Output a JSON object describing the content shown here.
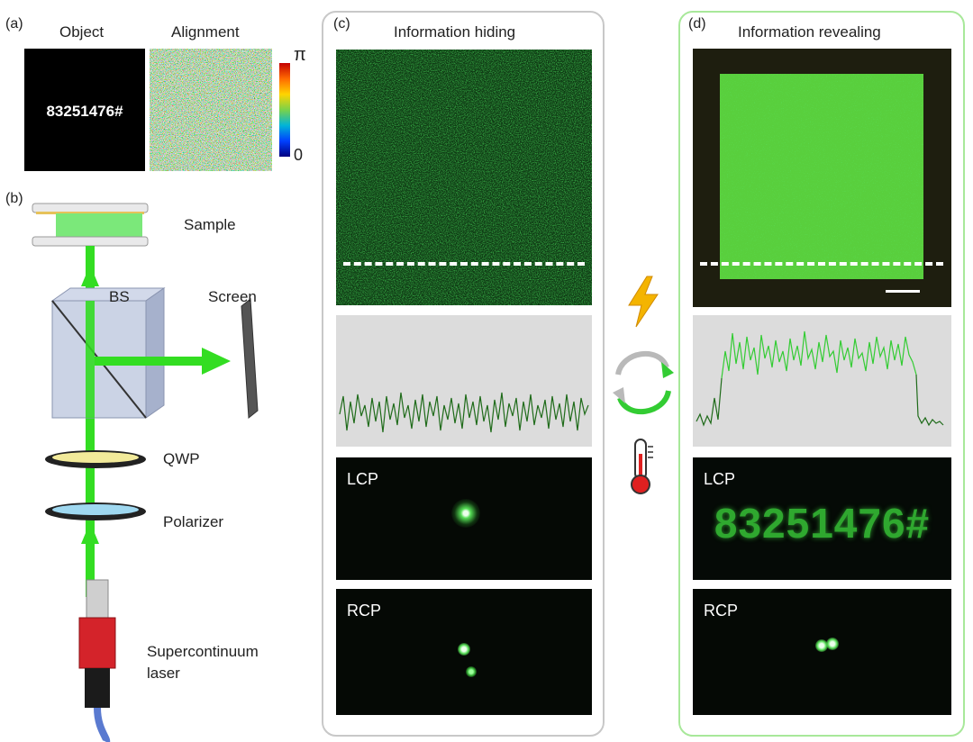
{
  "panel_a": {
    "tag": "(a)",
    "object_title": "Object",
    "alignment_title": "Alignment",
    "object_code": "83251476#",
    "scale_max": "π",
    "scale_min": "0"
  },
  "panel_b": {
    "tag": "(b)",
    "sample": "Sample",
    "bs": "BS",
    "screen": "Screen",
    "qwp": "QWP",
    "polarizer": "Polarizer",
    "laser_line1": "Supercontinuum",
    "laser_line2": "laser"
  },
  "panel_c": {
    "tag": "(c)",
    "title": "Information hiding",
    "lcp": "LCP",
    "rcp": "RCP"
  },
  "panel_d": {
    "tag": "(d)",
    "title": "Information revealing",
    "lcp": "LCP",
    "rcp": "RCP",
    "hologram_text": "83251476#"
  },
  "colors": {
    "beam_green": "#33dd22",
    "frame_c": "#c8c8c8",
    "frame_d": "#a8e89a",
    "profile_bg": "#dcdcdc",
    "sample_green": "#7be87a"
  },
  "icons": [
    "lightning-icon",
    "cycle-arrows-icon",
    "thermometer-icon"
  ]
}
